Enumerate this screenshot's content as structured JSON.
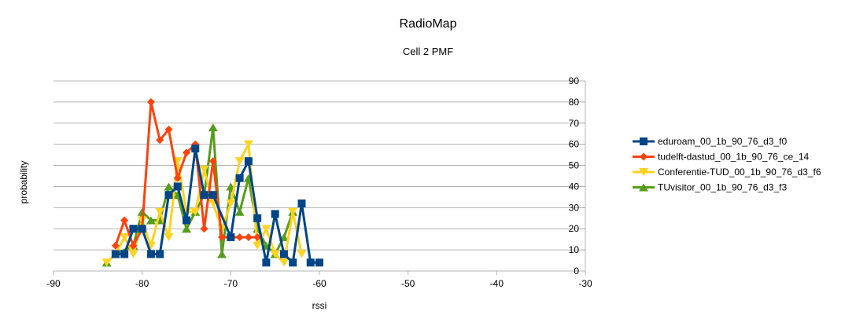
{
  "chart_data": {
    "type": "line",
    "title": "RadioMap",
    "subtitle": "Cell 2 PMF",
    "xlabel": "rssi",
    "ylabel": "probability",
    "xlim": [
      -90,
      -30
    ],
    "ylim": [
      0,
      90
    ],
    "xticks": [
      -90,
      -80,
      -70,
      -60,
      -50,
      -40,
      -30
    ],
    "yticks": [
      0,
      10,
      20,
      30,
      40,
      50,
      60,
      70,
      80,
      90
    ],
    "y_axis_side": "right",
    "grid": "horizontal",
    "legend_position": "right",
    "series": [
      {
        "name": "eduroam_00_1b_90_76_d3_f0",
        "color": "#004586",
        "marker": "square",
        "points": [
          [
            -83,
            8
          ],
          [
            -82,
            8
          ],
          [
            -81,
            20
          ],
          [
            -80,
            20
          ],
          [
            -79,
            8
          ],
          [
            -78,
            8
          ],
          [
            -77,
            36
          ],
          [
            -76,
            40
          ],
          [
            -75,
            24
          ],
          [
            -74,
            58
          ],
          [
            -73,
            36
          ],
          [
            -72,
            36
          ],
          [
            -70,
            16
          ],
          [
            -69,
            44
          ],
          [
            -68,
            52
          ],
          [
            -67,
            25
          ],
          [
            -66,
            4
          ],
          [
            -65,
            27
          ],
          [
            -64,
            8
          ],
          [
            -63,
            4
          ],
          [
            -62,
            32
          ],
          [
            -61,
            4
          ],
          [
            -60,
            4
          ]
        ]
      },
      {
        "name": "tudelft-dastud_00_1b_90_76_ce_14",
        "color": "#ff420e",
        "marker": "diamond",
        "points": [
          [
            -83,
            12
          ],
          [
            -82,
            24
          ],
          [
            -81,
            12
          ],
          [
            -80,
            20
          ],
          [
            -79,
            80
          ],
          [
            -78,
            62
          ],
          [
            -77,
            67
          ],
          [
            -76,
            44
          ],
          [
            -75,
            56
          ],
          [
            -74,
            60
          ],
          [
            -73,
            20
          ],
          [
            -72,
            52
          ],
          [
            -71,
            16
          ],
          [
            -70,
            16
          ],
          [
            -69,
            16
          ],
          [
            -68,
            16
          ],
          [
            -67,
            16
          ]
        ]
      },
      {
        "name": "Conferentie-TUD_00_1b_90_76_d3_f6",
        "color": "#ffd320",
        "marker": "triangle-down",
        "points": [
          [
            -84,
            4
          ],
          [
            -83,
            8
          ],
          [
            -82,
            16
          ],
          [
            -81,
            8
          ],
          [
            -80,
            24
          ],
          [
            -79,
            12
          ],
          [
            -78,
            28
          ],
          [
            -77,
            16
          ],
          [
            -76,
            52
          ],
          [
            -75,
            28
          ],
          [
            -74,
            28
          ],
          [
            -73,
            48
          ],
          [
            -72,
            32
          ],
          [
            -71,
            20
          ],
          [
            -70,
            32
          ],
          [
            -69,
            52
          ],
          [
            -68,
            60
          ],
          [
            -67,
            12
          ],
          [
            -66,
            20
          ],
          [
            -65,
            8
          ],
          [
            -64,
            4
          ],
          [
            -63,
            28
          ],
          [
            -62,
            8
          ]
        ]
      },
      {
        "name": "TUvisitor_00_1b_90_76_d3_f3",
        "color": "#579d1c",
        "marker": "triangle-up",
        "points": [
          [
            -84,
            4
          ],
          [
            -83,
            8
          ],
          [
            -81,
            12
          ],
          [
            -80,
            28
          ],
          [
            -79,
            24
          ],
          [
            -78,
            24
          ],
          [
            -77,
            40
          ],
          [
            -76,
            36
          ],
          [
            -75,
            20
          ],
          [
            -74,
            28
          ],
          [
            -73,
            36
          ],
          [
            -72,
            68
          ],
          [
            -71,
            8
          ],
          [
            -70,
            40
          ],
          [
            -69,
            28
          ],
          [
            -68,
            44
          ],
          [
            -67,
            20
          ],
          [
            -66,
            12
          ],
          [
            -65,
            8
          ],
          [
            -64,
            16
          ],
          [
            -63,
            28
          ]
        ]
      }
    ]
  }
}
